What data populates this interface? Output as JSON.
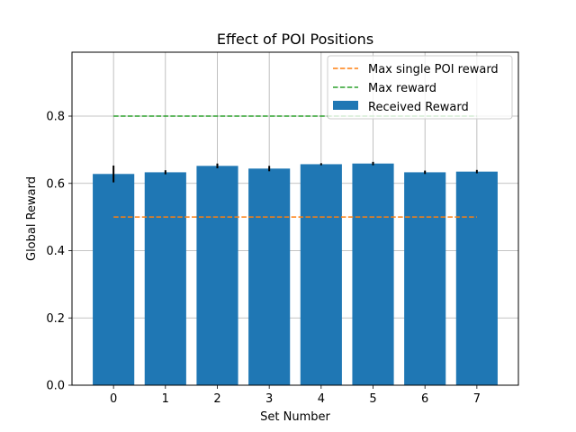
{
  "chart_data": {
    "type": "bar",
    "title": "Effect of POI Positions",
    "xlabel": "Set Number",
    "ylabel": "Global Reward",
    "categories": [
      "0",
      "1",
      "2",
      "3",
      "4",
      "5",
      "6",
      "7"
    ],
    "series": [
      {
        "name": "Received Reward",
        "values": [
          0.628,
          0.633,
          0.652,
          0.644,
          0.657,
          0.659,
          0.633,
          0.635
        ],
        "errors": [
          0.025,
          0.006,
          0.007,
          0.008,
          0.003,
          0.005,
          0.005,
          0.005
        ],
        "color": "#1f77b4"
      }
    ],
    "reference_lines": [
      {
        "name": "Max single POI reward",
        "y": 0.5,
        "x_range": [
          0,
          7
        ],
        "color": "#ff7f0e",
        "style": "dashed"
      },
      {
        "name": "Max reward",
        "y": 0.8,
        "x_range": [
          0,
          7
        ],
        "color": "#2ca02c",
        "style": "dashed"
      }
    ],
    "xlim": [
      -0.8,
      7.8
    ],
    "ylim": [
      0,
      0.99
    ],
    "yticks": [
      "0.0",
      "0.2",
      "0.4",
      "0.6",
      "0.8"
    ],
    "grid": true,
    "legend": "top-right"
  }
}
